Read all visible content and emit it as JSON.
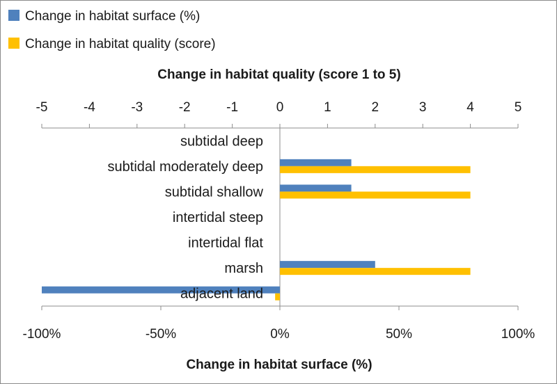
{
  "chart_data": {
    "type": "bar",
    "orientation": "horizontal",
    "categories": [
      "subtidal deep",
      "subtidal moderately deep",
      "subtidal shallow",
      "intertidal steep",
      "intertidal flat",
      "marsh",
      "adjacent land"
    ],
    "series": [
      {
        "name": "Change in habitat surface (%)",
        "color": "#4f81bd",
        "axis": "bottom",
        "values": [
          0,
          30,
          30,
          0,
          0,
          40,
          -100
        ]
      },
      {
        "name": "Change in habitat quality (score)",
        "color": "#ffc000",
        "axis": "top",
        "values": [
          0,
          4,
          4,
          0,
          0,
          4,
          -0.1
        ]
      }
    ],
    "top_axis": {
      "title": "Change in habitat quality (score 1 to 5)",
      "range": [
        -5,
        5
      ],
      "ticks": [
        "-5",
        "-4",
        "-3",
        "-2",
        "-1",
        "0",
        "1",
        "2",
        "3",
        "4",
        "5"
      ]
    },
    "bottom_axis": {
      "title": "Change in habitat surface (%)",
      "range": [
        -100,
        100
      ],
      "ticks": [
        "-100%",
        "-50%",
        "0%",
        "50%",
        "100%"
      ]
    },
    "legend_position": "top-left",
    "grid": false
  }
}
